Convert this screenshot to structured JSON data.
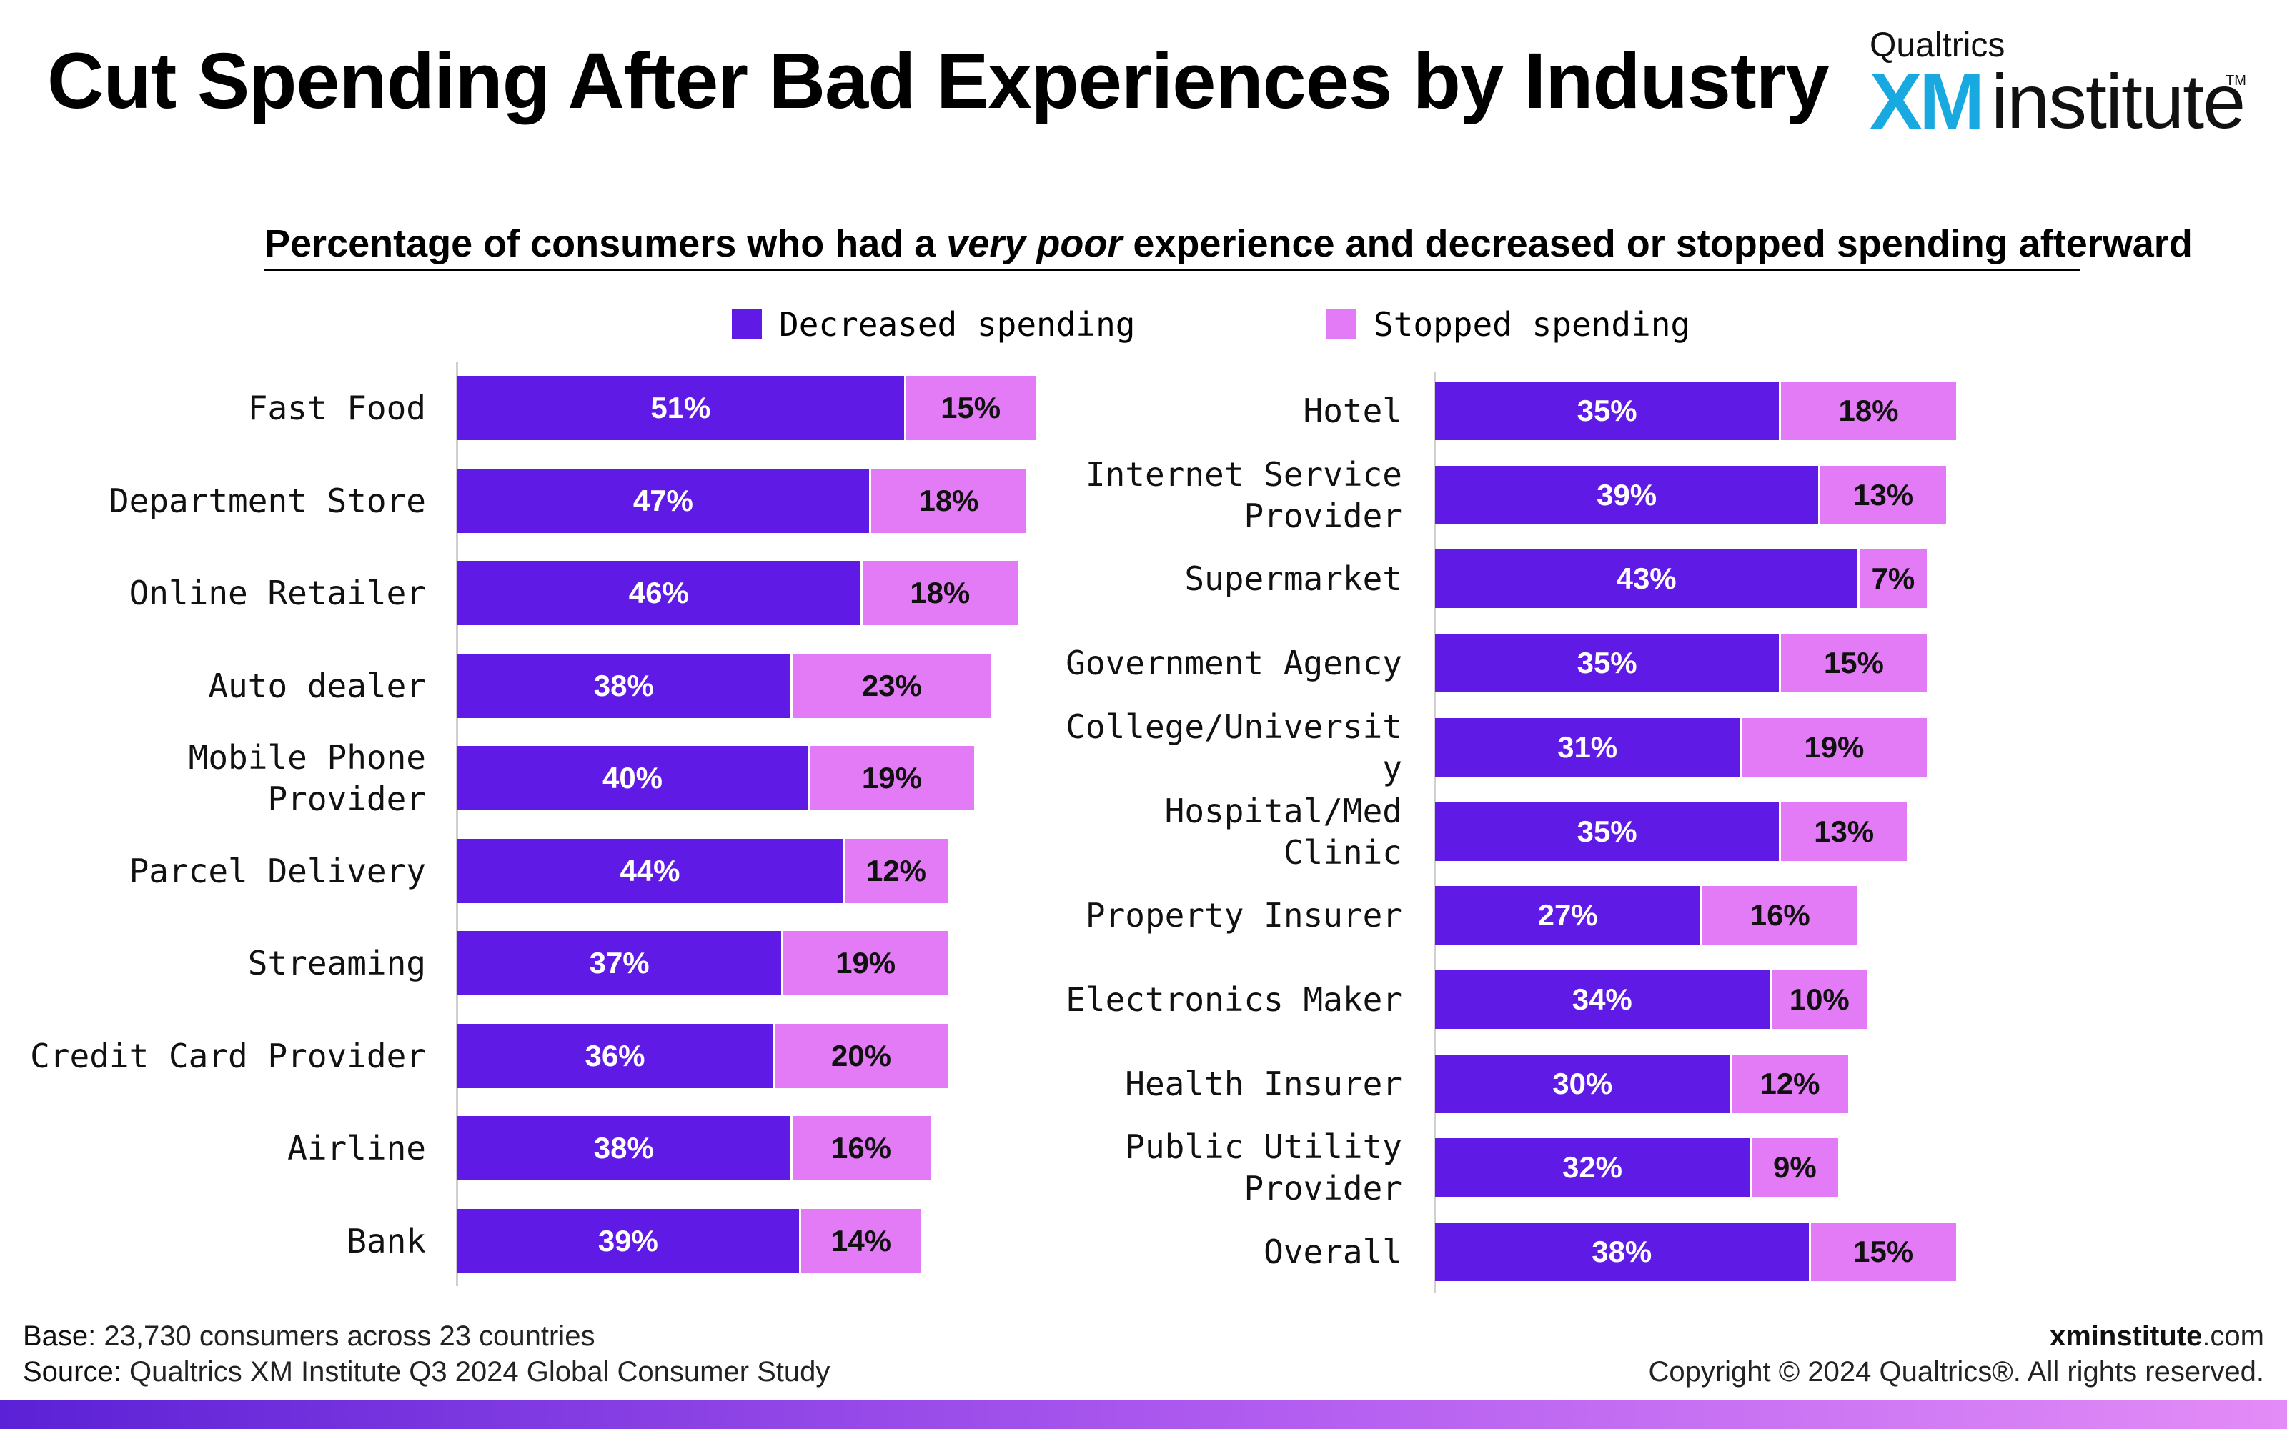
{
  "header": {
    "title": "Cut Spending After Bad Experiences by Industry",
    "logo_top": "Qualtrics",
    "logo_xm": "XM",
    "logo_institute": "institute",
    "logo_tm": "TM"
  },
  "chart_data": {
    "type": "bar",
    "orientation": "horizontal",
    "stacked": true,
    "subtitle_pre": "Percentage of consumers who had a ",
    "subtitle_em": "very poor",
    "subtitle_post": " experience and decreased or stopped spending afterward",
    "legend": [
      "Decreased spending",
      "Stopped spending"
    ],
    "colors": {
      "decreased": "#5f1ae5",
      "stopped": "#e47bf6"
    },
    "panels": [
      {
        "categories": [
          "Fast Food",
          "Department Store",
          "Online Retailer",
          "Auto dealer",
          "Mobile Phone\nProvider",
          "Parcel Delivery",
          "Streaming",
          "Credit Card Provider",
          "Airline",
          "Bank"
        ],
        "series": [
          {
            "name": "Decreased spending",
            "values": [
              51,
              47,
              46,
              38,
              40,
              44,
              37,
              36,
              38,
              39
            ],
            "labels": [
              "51%",
              "47%",
              "46%",
              "38%",
              "40%",
              "44%",
              "37%",
              "36%",
              "38%",
              "39%"
            ]
          },
          {
            "name": "Stopped spending",
            "values": [
              15,
              18,
              18,
              23,
              19,
              12,
              19,
              20,
              16,
              14
            ],
            "labels": [
              "15%",
              "18%",
              "18%",
              "23%",
              "19%",
              "12%",
              "19%",
              "20%",
              "16%",
              "14%"
            ]
          }
        ]
      },
      {
        "categories": [
          "Hotel",
          "Internet Service\nProvider",
          "Supermarket",
          "Government Agency",
          "College/Universit\ny",
          "Hospital/Med\nClinic",
          "Property Insurer",
          "Electronics Maker",
          "Health Insurer",
          "Public Utility\nProvider",
          "Overall"
        ],
        "series": [
          {
            "name": "Decreased spending",
            "values": [
              35,
              39,
              43,
              35,
              31,
              35,
              27,
              34,
              30,
              32,
              38
            ],
            "labels": [
              "35%",
              "39%",
              "43%",
              "35%",
              "31%",
              "35%",
              "27%",
              "34%",
              "30%",
              "32%",
              "38%"
            ]
          },
          {
            "name": "Stopped spending",
            "values": [
              18,
              13,
              7,
              15,
              19,
              13,
              16,
              10,
              12,
              9,
              15
            ],
            "labels": [
              "18%",
              "13%",
              "7%",
              "15%",
              "19%",
              "13%",
              "16%",
              "10%",
              "12%",
              "9%",
              "15%"
            ]
          }
        ]
      }
    ]
  },
  "footer": {
    "base_label": "Base:",
    "base_text": " 23,730 consumers across 23 countries",
    "source_label": "Source:",
    "source_text": " Qualtrics XM Institute Q3 2024 Global Consumer Study",
    "url_bold": "xminstitute",
    "url_rest": ".com",
    "copyright": "Copyright © 2024 Qualtrics®. All rights reserved."
  }
}
